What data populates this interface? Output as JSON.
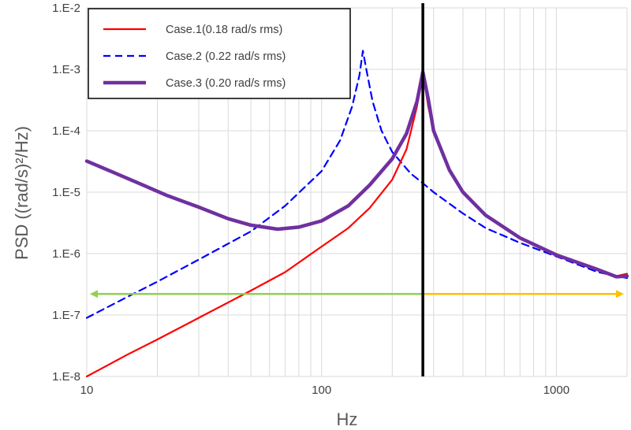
{
  "chart_data": {
    "type": "line",
    "title": "",
    "xlabel": "Hz",
    "ylabel": "PSD  ((rad/s)²/Hz)",
    "x_scale": "log",
    "y_scale": "log",
    "xlim": [
      10,
      2000
    ],
    "ylim": [
      1e-08,
      0.01
    ],
    "x_ticks": [
      {
        "value": 10,
        "label": "10"
      },
      {
        "value": 100,
        "label": "100"
      },
      {
        "value": 1000,
        "label": "1000"
      }
    ],
    "y_ticks": [
      {
        "value": 1e-08,
        "label": "1.E-8"
      },
      {
        "value": 1e-07,
        "label": "1.E-7"
      },
      {
        "value": 1e-06,
        "label": "1.E-6"
      },
      {
        "value": 1e-05,
        "label": "1.E-5"
      },
      {
        "value": 0.0001,
        "label": "1.E-4"
      },
      {
        "value": 0.001,
        "label": "1.E-3"
      },
      {
        "value": 0.01,
        "label": "1.E-2"
      }
    ],
    "grid": true,
    "legend_position": "top-left",
    "series": [
      {
        "name": "Case.1(0.18 rad/s rms)",
        "color": "#ff0000",
        "style": "solid",
        "width": "normal",
        "x": [
          10,
          15,
          20,
          30,
          50,
          70,
          100,
          130,
          160,
          200,
          230,
          255,
          270,
          285,
          300,
          350,
          400,
          500,
          700,
          1000,
          1500,
          1800,
          2000
        ],
        "y": [
          1e-08,
          2.3e-08,
          4e-08,
          9e-08,
          2.5e-07,
          5e-07,
          1.3e-06,
          2.6e-06,
          5.5e-06,
          1.6e-05,
          5e-05,
          0.00025,
          0.0009,
          0.00024,
          0.0001,
          2.3e-05,
          1.05e-05,
          4.3e-06,
          1.8e-06,
          9.5e-07,
          5.5e-07,
          4.3e-07,
          4.7e-07
        ]
      },
      {
        "name": "Case.2 (0.22 rad/s rms)",
        "color": "#0000ff",
        "style": "dashed",
        "width": "normal",
        "x": [
          10,
          15,
          20,
          30,
          50,
          70,
          100,
          120,
          135,
          145,
          150,
          155,
          165,
          180,
          200,
          240,
          270,
          300,
          400,
          500,
          700,
          1000,
          1500,
          2000
        ],
        "y": [
          9e-08,
          2e-07,
          3.5e-07,
          8e-07,
          2.3e-06,
          6e-06,
          2.2e-05,
          7e-05,
          0.00025,
          0.0008,
          0.002,
          0.001,
          0.0003,
          0.0001,
          4.5e-05,
          2e-05,
          1.4e-05,
          1e-05,
          4.5e-06,
          2.6e-06,
          1.5e-06,
          9e-07,
          5e-07,
          4e-07
        ]
      },
      {
        "name": "Case.3 (0.20 rad/s rms)",
        "color": "#7030a0",
        "style": "solid",
        "width": "thick",
        "x": [
          10,
          13,
          17,
          22,
          30,
          40,
          50,
          65,
          80,
          100,
          130,
          160,
          200,
          230,
          255,
          270,
          285,
          300,
          350,
          400,
          500,
          700,
          1000,
          1500,
          1800,
          2000
        ],
        "y": [
          3.2e-05,
          2.1e-05,
          1.35e-05,
          8.8e-06,
          5.7e-06,
          3.7e-06,
          2.9e-06,
          2.5e-06,
          2.7e-06,
          3.4e-06,
          6e-06,
          1.3e-05,
          3.5e-05,
          9e-05,
          0.0003,
          0.0009,
          0.00032,
          0.0001,
          2.3e-05,
          1e-05,
          4.2e-06,
          1.8e-06,
          9.5e-07,
          5.5e-07,
          4.2e-07,
          4.3e-07
        ]
      }
    ],
    "annotations": {
      "vertical_line": {
        "x": 270,
        "color": "#000000"
      },
      "left_arrow": {
        "from": 270,
        "to": 10,
        "y": 2.2e-07,
        "color": "#92d050"
      },
      "right_arrow": {
        "from": 270,
        "to": 2000,
        "y": 2.2e-07,
        "color": "#ffc000"
      }
    }
  }
}
